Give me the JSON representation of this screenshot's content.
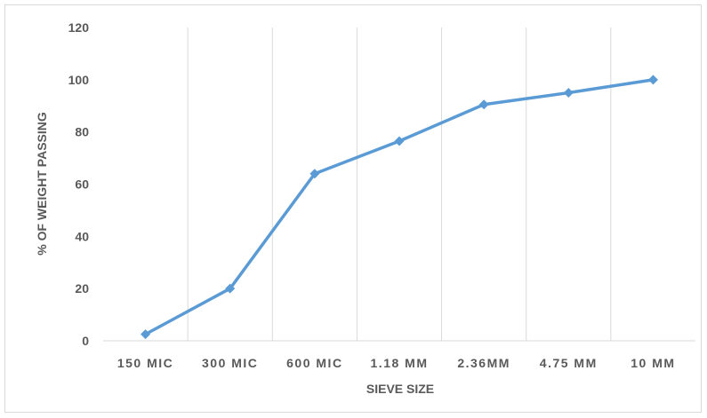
{
  "chart_data": {
    "type": "line",
    "title": "",
    "xlabel": "SIEVE SIZE",
    "ylabel": "% OF WEIGHT PASSING",
    "categories": [
      "150 MIC",
      "300 MIC",
      "600 MIC",
      "1.18 MM",
      "2.36MM",
      "4.75 MM",
      "10 MM"
    ],
    "series": [
      {
        "values": [
          2.5,
          20,
          64,
          76.5,
          90.5,
          95,
          100
        ]
      }
    ],
    "ylim": [
      0,
      120
    ],
    "yticks": [
      0,
      20,
      40,
      60,
      80,
      100,
      120
    ],
    "grid": "vertical",
    "legend": "none",
    "colors": {
      "line": "#5b9bd5",
      "grid": "#d9d9d9",
      "axis": "#d9d9d9",
      "text": "#595959"
    }
  }
}
